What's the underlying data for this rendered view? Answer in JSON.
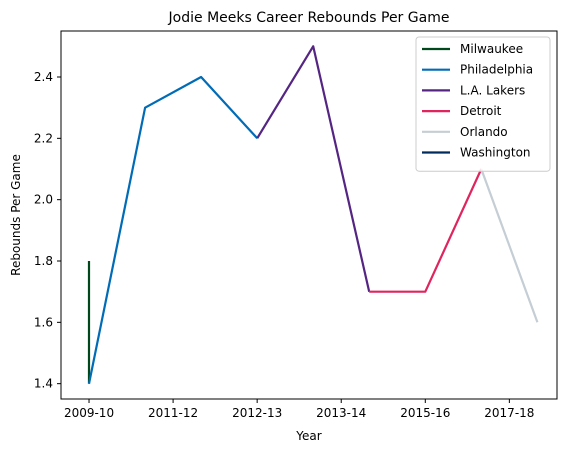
{
  "chart_data": {
    "type": "line",
    "title": "Jodie Meeks Career Rebounds Per Game",
    "xlabel": "Year",
    "ylabel": "Rebounds Per Game",
    "x_tick_labels": [
      "2009-10",
      "2011-12",
      "2012-13",
      "2013-14",
      "2015-16",
      "2017-18"
    ],
    "x_tick_positions": [
      0,
      1.5,
      3,
      4.5,
      6,
      7.5
    ],
    "y_ticks": [
      1.4,
      1.6,
      1.8,
      2.0,
      2.2,
      2.4
    ],
    "y_tick_labels": [
      "1.4",
      "1.6",
      "1.8",
      "2.0",
      "2.2",
      "2.4"
    ],
    "xlim": [
      -0.5,
      8.35
    ],
    "ylim": [
      1.35,
      2.55
    ],
    "grid": false,
    "legend_position": "top-right",
    "series": [
      {
        "name": "Milwaukee",
        "color": "#00471b",
        "x": [
          0,
          0
        ],
        "y": [
          1.8,
          1.4
        ]
      },
      {
        "name": "Philadelphia",
        "color": "#006bb6",
        "x": [
          0,
          1,
          2,
          3
        ],
        "y": [
          1.4,
          2.3,
          2.4,
          2.2
        ]
      },
      {
        "name": "L.A. Lakers",
        "color": "#552583",
        "x": [
          3,
          4,
          5
        ],
        "y": [
          2.2,
          2.5,
          1.7
        ]
      },
      {
        "name": "Detroit",
        "color": "#e0245e",
        "x": [
          5,
          6,
          7
        ],
        "y": [
          1.7,
          1.7,
          2.1
        ]
      },
      {
        "name": "Orlando",
        "color": "#c4ced4",
        "x": [
          7,
          8
        ],
        "y": [
          2.1,
          1.6
        ]
      },
      {
        "name": "Washington",
        "color": "#002b5c",
        "x": [
          8
        ],
        "y": [
          1.6
        ]
      }
    ]
  }
}
